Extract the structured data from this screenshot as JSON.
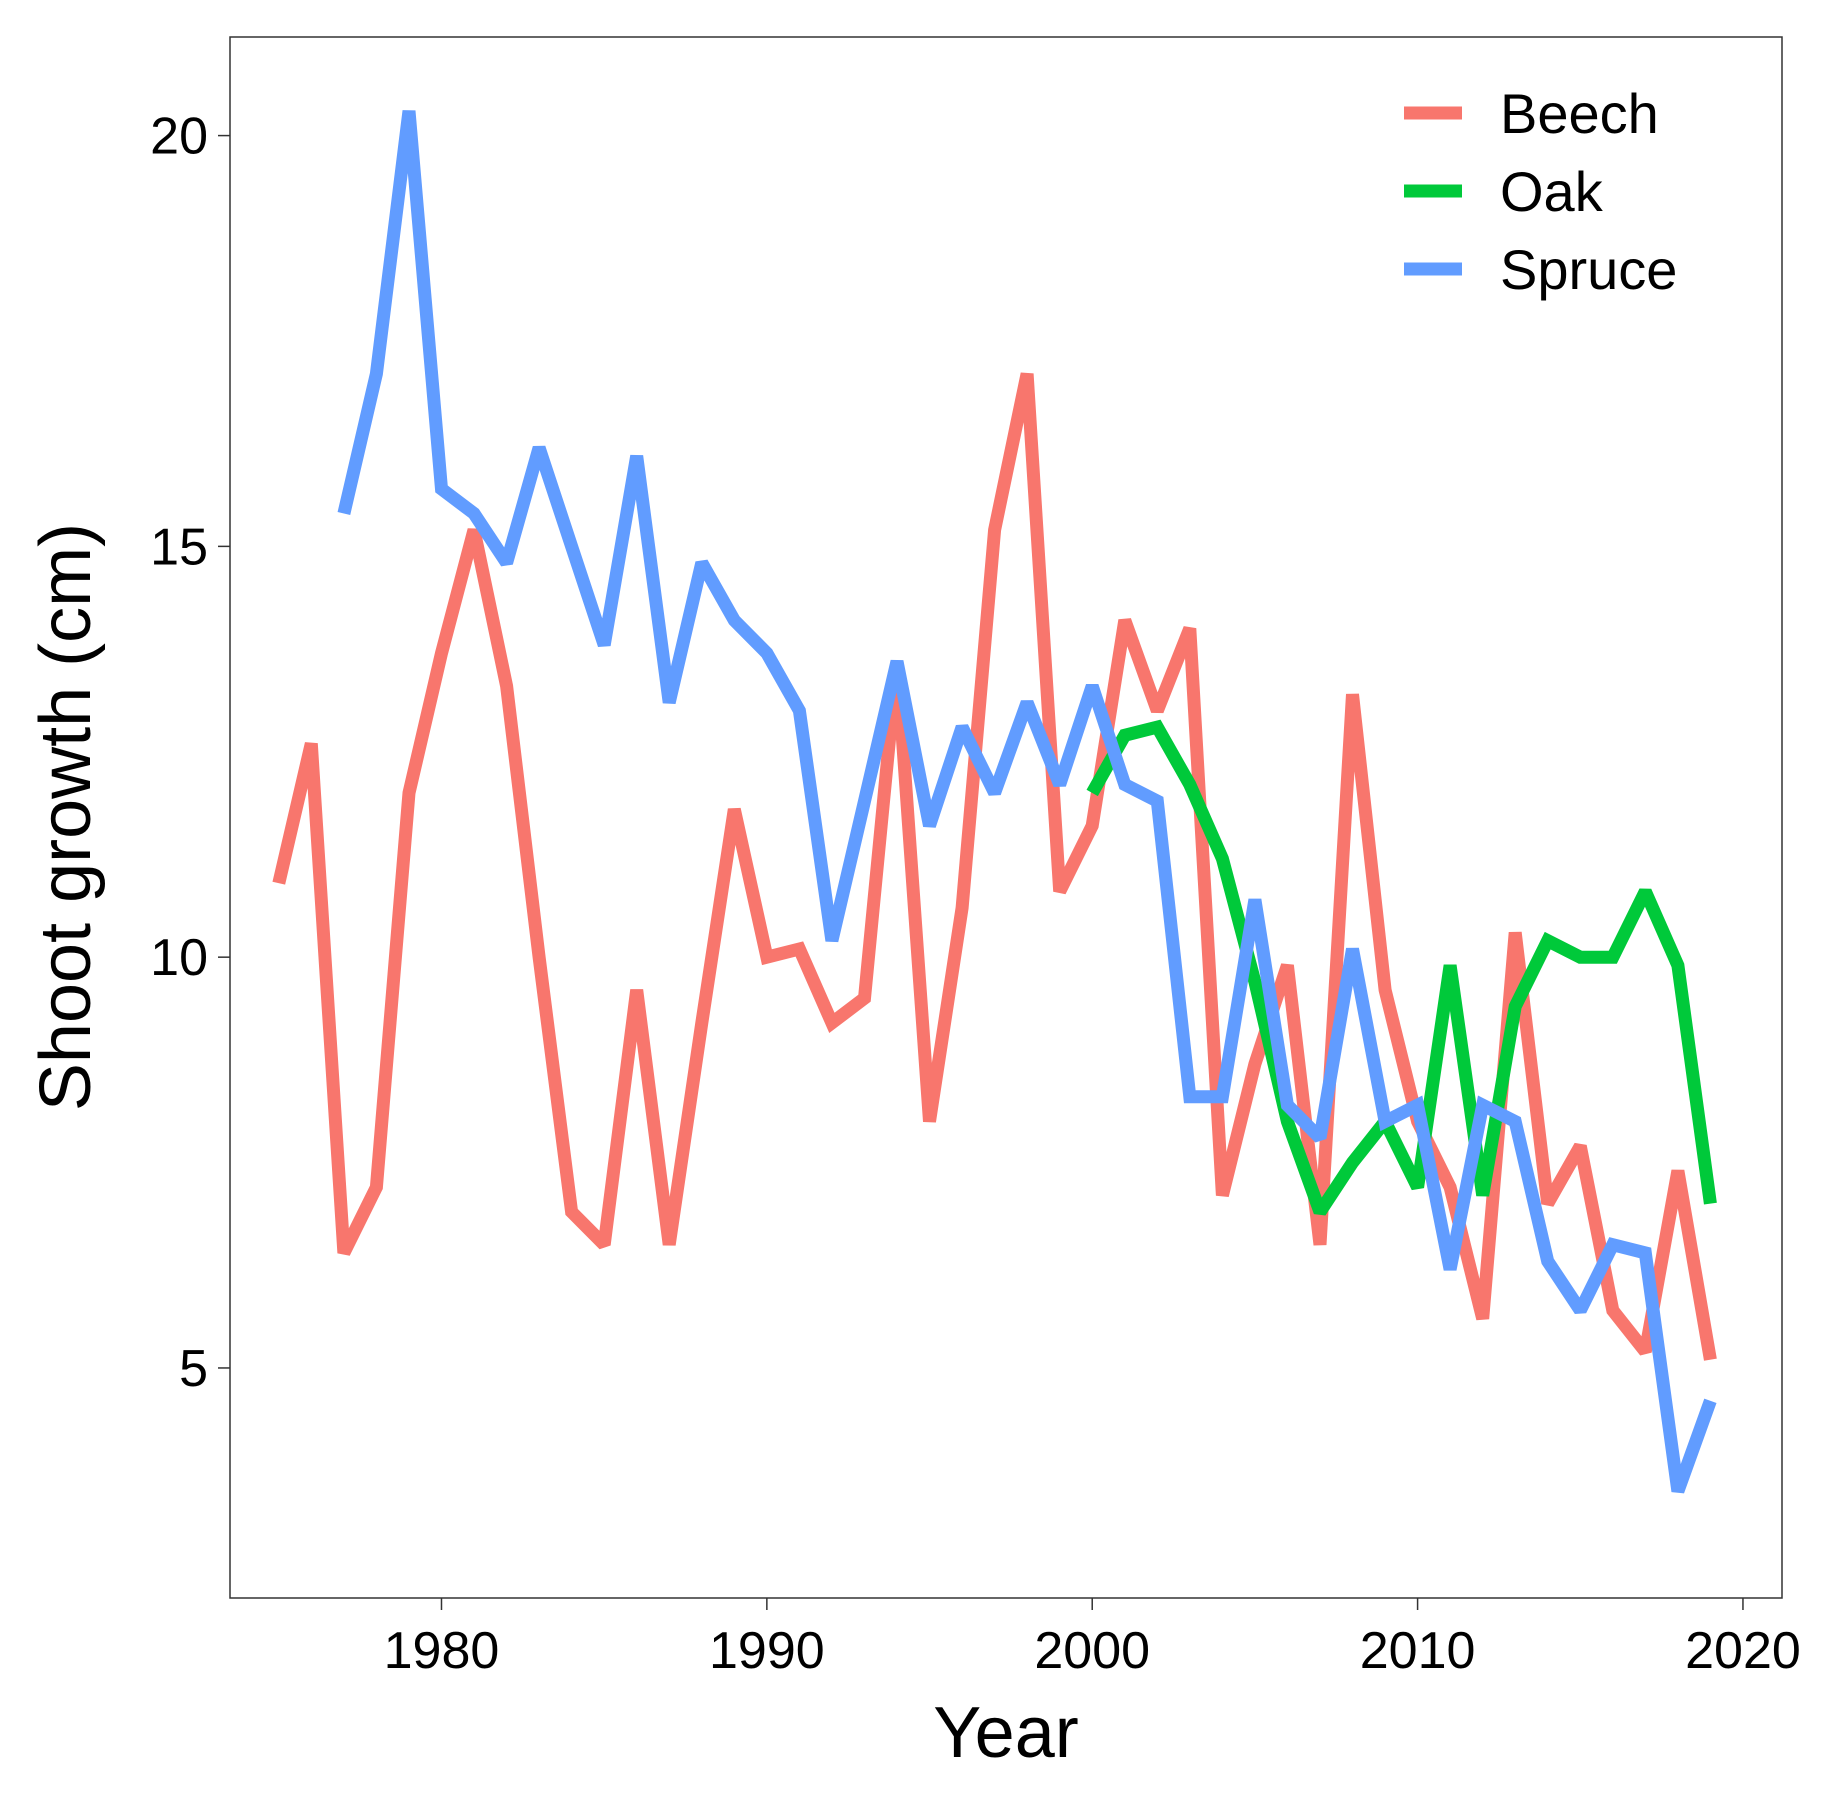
{
  "chart_data": {
    "type": "line",
    "title": "",
    "xlabel": "Year",
    "ylabel": "Shoot growth (cm)",
    "xlim": [
      1973.5,
      2021.2
    ],
    "ylim": [
      2.2,
      21.2
    ],
    "x_ticks": [
      1980,
      1990,
      2000,
      2010,
      2020
    ],
    "y_ticks": [
      5,
      10,
      15,
      20
    ],
    "grid": false,
    "legend_position": "top-right",
    "series": [
      {
        "name": "Beech",
        "color": "#F8766D",
        "x": [
          1975,
          1976,
          1977,
          1978,
          1979,
          1980,
          1981,
          1982,
          1983,
          1984,
          1985,
          1986,
          1987,
          1988,
          1989,
          1990,
          1991,
          1992,
          1993,
          1994,
          1995,
          1996,
          1997,
          1998,
          1999,
          2000,
          2001,
          2002,
          2003,
          2004,
          2005,
          2006,
          2007,
          2008,
          2009,
          2010,
          2011,
          2012,
          2013,
          2014,
          2015,
          2016,
          2017,
          2018,
          2019
        ],
        "y": [
          10.9,
          12.6,
          6.4,
          7.2,
          12.0,
          13.7,
          15.2,
          13.3,
          10.0,
          6.9,
          6.5,
          9.6,
          6.5,
          9.2,
          11.8,
          10.0,
          10.1,
          9.2,
          9.5,
          13.6,
          8.0,
          10.6,
          15.2,
          17.1,
          10.8,
          11.6,
          14.1,
          13.0,
          14.0,
          7.1,
          8.7,
          9.9,
          6.5,
          13.2,
          9.6,
          8.0,
          7.2,
          5.6,
          10.3,
          7.0,
          7.7,
          5.7,
          5.2,
          7.4,
          5.1
        ]
      },
      {
        "name": "Oak",
        "color": "#00C93A",
        "x": [
          2000,
          2001,
          2002,
          2003,
          2004,
          2005,
          2006,
          2007,
          2008,
          2009,
          2010,
          2011,
          2012,
          2013,
          2014,
          2015,
          2016,
          2017,
          2018,
          2019
        ],
        "y": [
          12.0,
          12.7,
          12.8,
          12.1,
          11.2,
          9.7,
          8.0,
          6.9,
          7.5,
          8.0,
          7.2,
          9.9,
          7.1,
          9.4,
          10.2,
          10.0,
          10.0,
          10.8,
          9.9,
          7.0
        ]
      },
      {
        "name": "Spruce",
        "color": "#619CFF",
        "x": [
          1977,
          1978,
          1979,
          1980,
          1981,
          1982,
          1983,
          1984,
          1985,
          1986,
          1987,
          1988,
          1989,
          1990,
          1991,
          1992,
          1993,
          1994,
          1995,
          1996,
          1997,
          1998,
          1999,
          2000,
          2001,
          2002,
          2003,
          2004,
          2005,
          2006,
          2007,
          2008,
          2009,
          2010,
          2011,
          2012,
          2013,
          2014,
          2015,
          2016,
          2017,
          2018,
          2019
        ],
        "y": [
          15.4,
          17.1,
          20.3,
          15.7,
          15.4,
          14.8,
          16.2,
          15.0,
          13.8,
          16.1,
          13.1,
          14.8,
          14.1,
          13.7,
          13.0,
          10.2,
          11.9,
          13.6,
          11.6,
          12.8,
          12.0,
          13.1,
          12.1,
          13.3,
          12.1,
          11.9,
          8.3,
          8.3,
          10.7,
          8.2,
          7.8,
          10.1,
          8.0,
          8.2,
          6.2,
          8.2,
          8.0,
          6.3,
          5.7,
          6.5,
          6.4,
          3.5,
          4.6
        ]
      }
    ]
  }
}
